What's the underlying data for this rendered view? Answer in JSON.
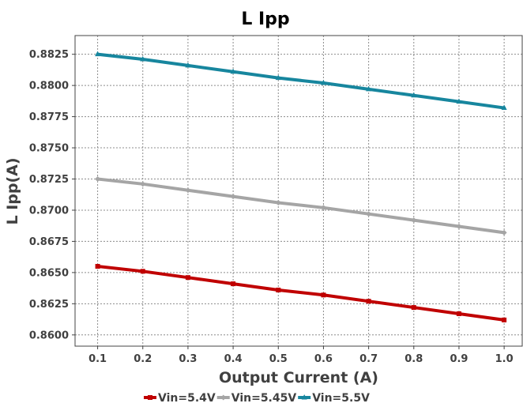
{
  "chart_data": {
    "type": "line",
    "title": "L Ipp",
    "xlabel": "Output Current (A)",
    "ylabel": "L Ipp(A)",
    "x": [
      0.1,
      0.2,
      0.3,
      0.4,
      0.5,
      0.6,
      0.7,
      0.8,
      0.9,
      1.0
    ],
    "x_tick_labels": [
      "0.1",
      "0.2",
      "0.3",
      "0.4",
      "0.5",
      "0.6",
      "0.7",
      "0.8",
      "0.9",
      "1.0"
    ],
    "y_tick_values": [
      0.86,
      0.8625,
      0.865,
      0.8675,
      0.87,
      0.8725,
      0.875,
      0.8775,
      0.88,
      0.8825
    ],
    "y_tick_labels": [
      "0.8600",
      "0.8625",
      "0.8650",
      "0.8675",
      "0.8700",
      "0.8725",
      "0.8750",
      "0.8775",
      "0.8800",
      "0.8825"
    ],
    "xlim": [
      0.05,
      1.04
    ],
    "ylim": [
      0.8591,
      0.884
    ],
    "grid": true,
    "legend_position": "bottom",
    "series": [
      {
        "name": "Vin=5.4V",
        "color": "#c00000",
        "marker": "square",
        "values": [
          0.8655,
          0.8651,
          0.8646,
          0.8641,
          0.8636,
          0.8632,
          0.8627,
          0.8622,
          0.8617,
          0.8612
        ]
      },
      {
        "name": "Vin=5.45V",
        "color": "#a5a5a5",
        "marker": "diamond",
        "values": [
          0.8725,
          0.8721,
          0.8716,
          0.8711,
          0.8706,
          0.8702,
          0.8697,
          0.8692,
          0.8687,
          0.8682
        ]
      },
      {
        "name": "Vin=5.5V",
        "color": "#17869e",
        "marker": "triangle",
        "values": [
          0.8825,
          0.8821,
          0.8816,
          0.8811,
          0.8806,
          0.8802,
          0.8797,
          0.8792,
          0.8787,
          0.8782
        ]
      }
    ]
  }
}
